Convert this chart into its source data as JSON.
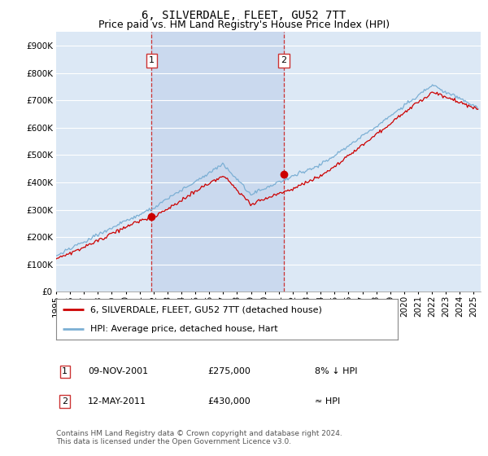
{
  "title": "6, SILVERDALE, FLEET, GU52 7TT",
  "subtitle": "Price paid vs. HM Land Registry's House Price Index (HPI)",
  "ylim": [
    0,
    950000
  ],
  "xlim_start": 1995.0,
  "xlim_end": 2025.5,
  "background_color": "#FFFFFF",
  "plot_bg_color": "#DCE8F5",
  "highlight_color": "#C8D8EE",
  "grid_color": "#FFFFFF",
  "sale1_date": 2001.86,
  "sale1_price": 275000,
  "sale2_date": 2011.37,
  "sale2_price": 430000,
  "line_color_property": "#CC0000",
  "line_color_hpi": "#7BAFD4",
  "vline_color": "#CC3333",
  "legend_label_property": "6, SILVERDALE, FLEET, GU52 7TT (detached house)",
  "legend_label_hpi": "HPI: Average price, detached house, Hart",
  "footer": "Contains HM Land Registry data © Crown copyright and database right 2024.\nThis data is licensed under the Open Government Licence v3.0.",
  "title_fontsize": 10,
  "subtitle_fontsize": 9,
  "tick_fontsize": 7.5
}
